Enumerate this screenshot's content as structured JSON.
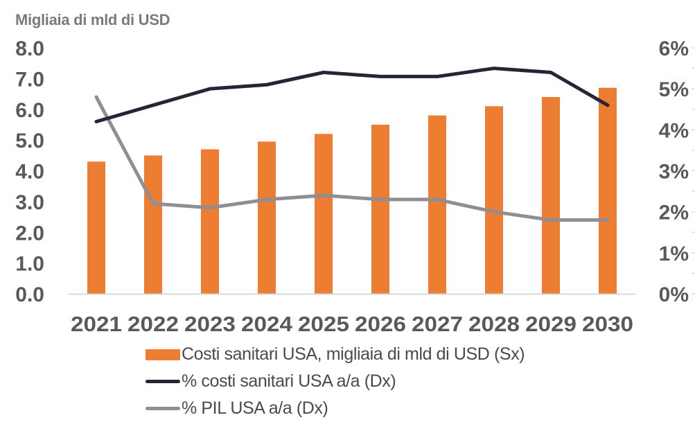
{
  "unit_label": "Migliaia di mld di USD",
  "colors": {
    "bars": "#ed7d31",
    "health_cost_line": "#222733",
    "gdp_line": "#8e8e93",
    "axis_text": "#595959",
    "axis_line": "#d9d9d9"
  },
  "chart_data": {
    "type": "bar",
    "title": "",
    "xlabel": "",
    "ylabel": "Migliaia di mld di USD",
    "categories": [
      "2021",
      "2022",
      "2023",
      "2024",
      "2025",
      "2026",
      "2027",
      "2028",
      "2029",
      "2030"
    ],
    "left_axis": {
      "range": [
        0,
        8
      ],
      "ticks": [
        "0.0",
        "1.0",
        "2.0",
        "3.0",
        "4.0",
        "5.0",
        "6.0",
        "7.0",
        "8.0"
      ],
      "tick_values": [
        0,
        1,
        2,
        3,
        4,
        5,
        6,
        7,
        8
      ]
    },
    "right_axis": {
      "range": [
        0,
        6
      ],
      "ticks": [
        "0%",
        "1%",
        "2%",
        "3%",
        "4%",
        "5%",
        "6%"
      ],
      "tick_values": [
        0,
        1,
        2,
        3,
        4,
        5,
        6
      ]
    },
    "grid": false,
    "legend_position": "bottom",
    "series": [
      {
        "name": "Costi sanitari USA, migliaia di mld di USD (Sx)",
        "type": "bar",
        "axis": "left",
        "values": [
          4.3,
          4.5,
          4.7,
          4.95,
          5.2,
          5.5,
          5.8,
          6.1,
          6.4,
          6.7
        ]
      },
      {
        "name": "% costi sanitari USA a/a (Dx)",
        "type": "line",
        "axis": "right",
        "values": [
          4.2,
          4.6,
          5.0,
          5.1,
          5.4,
          5.3,
          5.3,
          5.5,
          5.4,
          4.6
        ]
      },
      {
        "name": "% PIL USA a/a (Dx)",
        "type": "line",
        "axis": "right",
        "values": [
          4.8,
          2.2,
          2.1,
          2.3,
          2.4,
          2.3,
          2.3,
          2.0,
          1.8,
          1.8
        ]
      }
    ]
  }
}
